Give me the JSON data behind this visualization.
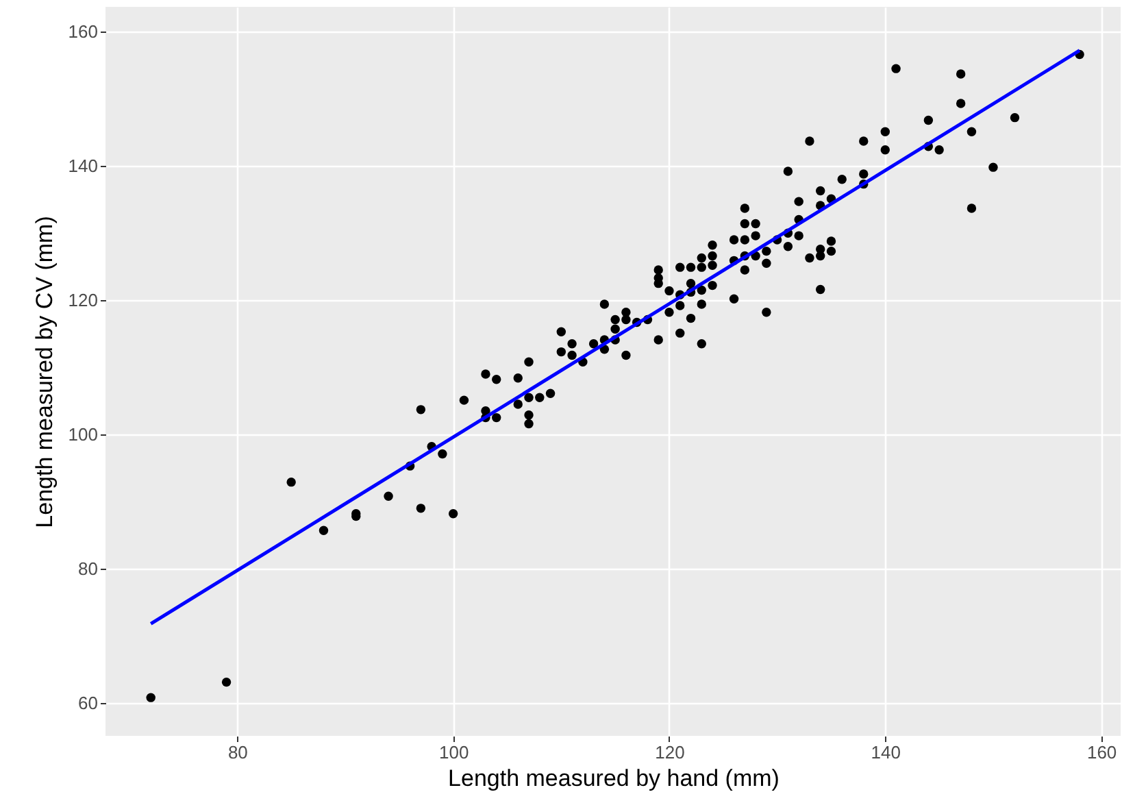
{
  "chart_data": {
    "type": "scatter",
    "xlabel": "Length measured by hand (mm)",
    "ylabel": "Length measured by CV (mm)",
    "xlim": [
      67.8,
      161.8
    ],
    "ylim": [
      55.1,
      163.7
    ],
    "xticks": [
      80,
      100,
      120,
      140,
      160
    ],
    "yticks": [
      60,
      80,
      100,
      120,
      140,
      160
    ],
    "grid": true,
    "marker": "circle",
    "series": [
      {
        "color": "#000000",
        "x": [
          72,
          79,
          85,
          88,
          91,
          91,
          94,
          96,
          97,
          97,
          98,
          99,
          100,
          101,
          103,
          103,
          103,
          104,
          104,
          106,
          106,
          107,
          107,
          107,
          107,
          108,
          109,
          110,
          110,
          111,
          111,
          112,
          113,
          114,
          114,
          114,
          115,
          115,
          115,
          116,
          116,
          116,
          117,
          118,
          119,
          119,
          119,
          119,
          120,
          120,
          121,
          121,
          121,
          121,
          122,
          122,
          122,
          122,
          123,
          123,
          123,
          123,
          123,
          124,
          124,
          124,
          124,
          126,
          126,
          126,
          127,
          127,
          127,
          127,
          127,
          128,
          128,
          128,
          129,
          129,
          129,
          130,
          131,
          131,
          131,
          132,
          132,
          132,
          133,
          133,
          134,
          134,
          134,
          134,
          134,
          135,
          135,
          135,
          136,
          138,
          138,
          138,
          140,
          140,
          141,
          144,
          144,
          145,
          147,
          147,
          148,
          148,
          150,
          152,
          158
        ],
        "values": [
          60.8,
          63.1,
          92.9,
          85.7,
          88.2,
          87.8,
          90.8,
          95.3,
          103.7,
          89,
          98.2,
          97.1,
          88.2,
          105.1,
          109,
          103.5,
          102.5,
          108.2,
          102.5,
          108.4,
          104.5,
          110.8,
          105.5,
          102.9,
          101.6,
          105.5,
          106.1,
          115.3,
          112.3,
          113.5,
          111.8,
          110.8,
          113.5,
          119.4,
          114.1,
          112.7,
          117.1,
          115.7,
          114.1,
          118.2,
          117.1,
          111.8,
          116.7,
          117.1,
          124.5,
          123.3,
          122.5,
          114.1,
          121.4,
          118.2,
          124.9,
          120.8,
          119.2,
          115.1,
          124.9,
          122.5,
          121.2,
          117.3,
          126.3,
          124.9,
          121.5,
          119.4,
          113.5,
          128.2,
          126.6,
          125.2,
          122.2,
          129,
          125.9,
          120.2,
          133.7,
          131.4,
          129,
          126.6,
          124.5,
          131.4,
          129.6,
          126.6,
          127.3,
          125.5,
          118.2,
          129,
          139.2,
          130,
          128,
          134.7,
          132,
          129.6,
          143.7,
          126.3,
          136.3,
          134.1,
          127.6,
          126.6,
          121.6,
          135.1,
          128.8,
          127.3,
          138,
          143.7,
          138.8,
          137.3,
          145.1,
          142.4,
          154.5,
          146.8,
          142.9,
          142.4,
          153.7,
          149.3,
          145.1,
          133.7,
          139.8,
          147.2,
          156.6
        ]
      },
      {
        "type": "line",
        "marker": "none",
        "color": "#0000ff",
        "x": [
          72,
          158
        ],
        "values": [
          71.8,
          157.2
        ]
      }
    ]
  }
}
